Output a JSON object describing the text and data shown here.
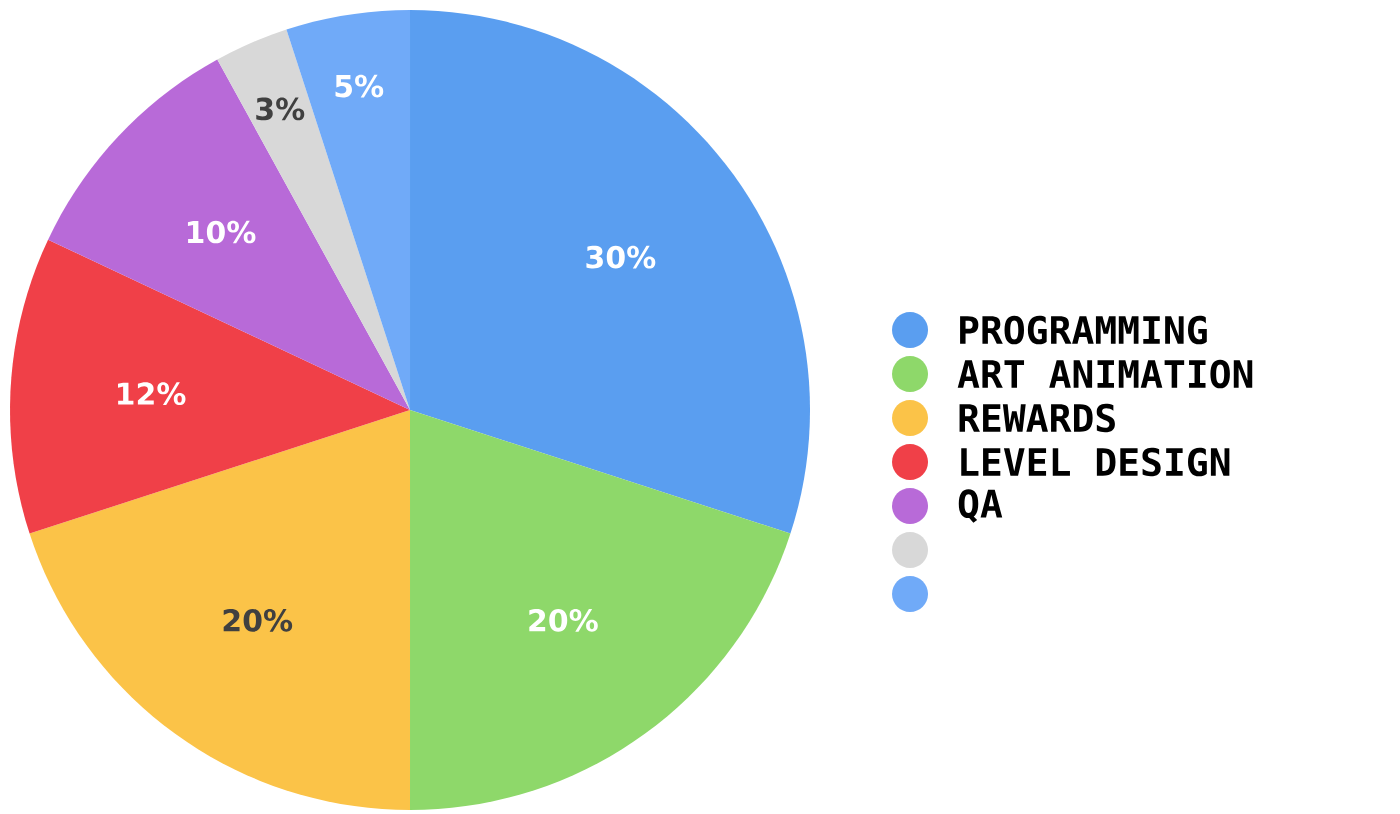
{
  "chart_data": {
    "type": "pie",
    "categories": [
      "PROGRAMMING",
      "ART ANIMATION",
      "REWARDS",
      "LEVEL DESIGN",
      "QA",
      null,
      null
    ],
    "values": [
      30,
      20,
      20,
      12,
      10,
      3,
      5
    ],
    "value_labels": [
      "30%",
      "20%",
      "20%",
      "12%",
      "10%",
      "3%",
      "5%"
    ],
    "colors": [
      "#5a9ef0",
      "#8ed86a",
      "#fbc348",
      "#f04048",
      "#b86ad8",
      "#d8d8d8",
      "#70aaf8"
    ],
    "legend": "right"
  }
}
